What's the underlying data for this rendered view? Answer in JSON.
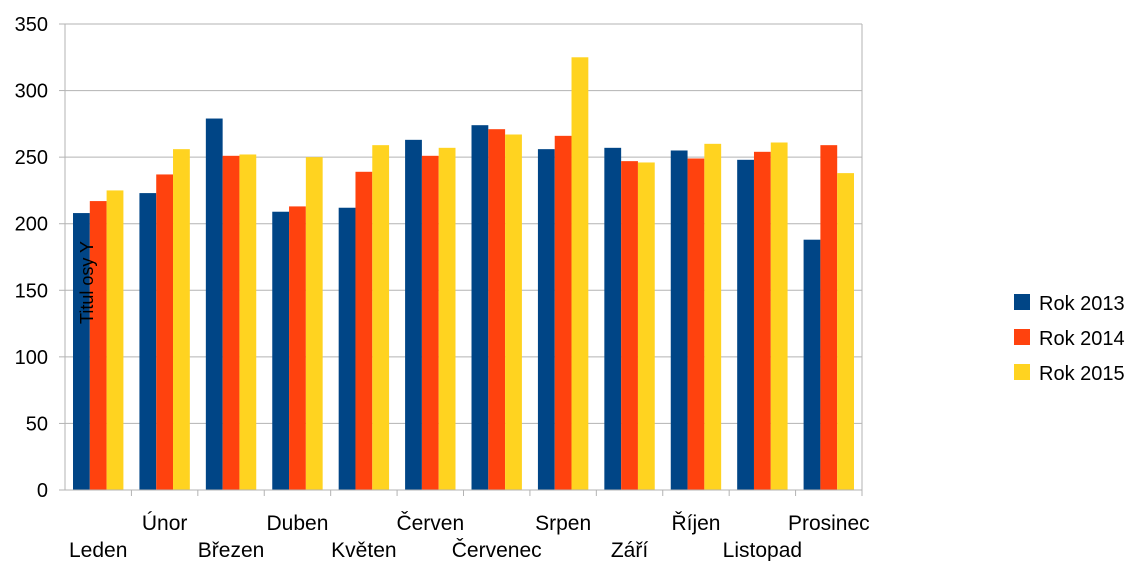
{
  "chart_data": {
    "type": "bar",
    "title": "",
    "xlabel": "",
    "ylabel": "Titul osy Y",
    "categories": [
      "Leden",
      "Únor",
      "Březen",
      "Duben",
      "Květen",
      "Červen",
      "Červenec",
      "Srpen",
      "Září",
      "Říjen",
      "Listopad",
      "Prosinec"
    ],
    "series": [
      {
        "name": "Rok 2013",
        "color": "#004586",
        "values": [
          208,
          223,
          279,
          209,
          212,
          263,
          274,
          256,
          257,
          255,
          248,
          188
        ]
      },
      {
        "name": "Rok 2014",
        "color": "#ff420e",
        "values": [
          217,
          237,
          251,
          213,
          239,
          251,
          271,
          266,
          247,
          249,
          254,
          259
        ]
      },
      {
        "name": "Rok 2015",
        "color": "#ffd320",
        "values": [
          225,
          256,
          252,
          250,
          259,
          257,
          267,
          325,
          246,
          260,
          261,
          238
        ]
      }
    ],
    "ylim": [
      0,
      350
    ],
    "yticks": [
      0,
      50,
      100,
      150,
      200,
      250,
      300,
      350
    ],
    "grid": true,
    "legend_position": "right"
  }
}
